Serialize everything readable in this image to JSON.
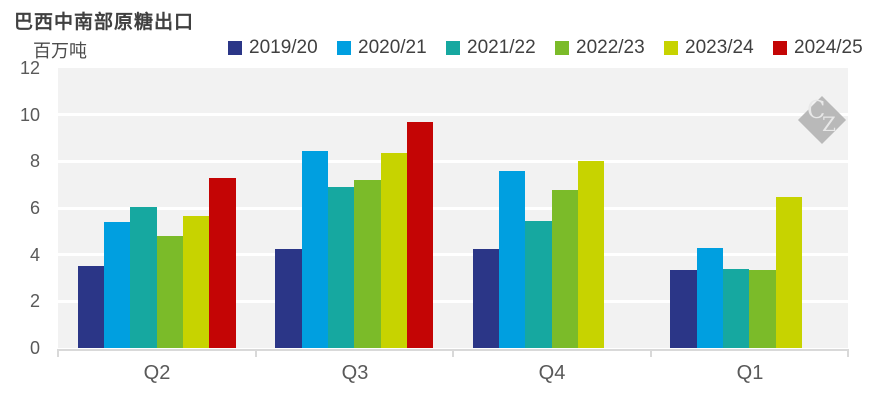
{
  "watermark": {
    "letter_c": "C",
    "letter_z": "Z"
  },
  "chart_data": {
    "type": "bar",
    "title": "巴西中南部原糖出口",
    "ylabel": "百万吨",
    "xlabel": "",
    "categories": [
      "Q2",
      "Q3",
      "Q4",
      "Q1"
    ],
    "series": [
      {
        "name": "2019/20",
        "color": "#2b3687",
        "values": [
          3.5,
          4.25,
          4.25,
          3.35
        ]
      },
      {
        "name": "2020/21",
        "color": "#009fe0",
        "values": [
          5.4,
          8.45,
          7.6,
          4.3
        ]
      },
      {
        "name": "2021/22",
        "color": "#16a8a0",
        "values": [
          6.05,
          6.9,
          5.45,
          3.4
        ]
      },
      {
        "name": "2022/23",
        "color": "#7bbb29",
        "values": [
          4.8,
          7.2,
          6.75,
          3.35
        ]
      },
      {
        "name": "2023/24",
        "color": "#c7d300",
        "values": [
          5.65,
          8.35,
          8.0,
          6.45
        ]
      },
      {
        "name": "2024/25",
        "color": "#c40505",
        "values": [
          7.3,
          9.7,
          null,
          null
        ]
      }
    ],
    "ylim": [
      0,
      12
    ],
    "yticks": [
      0,
      2,
      4,
      6,
      8,
      10,
      12
    ],
    "grid": true,
    "legend_position": "top",
    "style": {
      "plot_bg": "#f2f2f2",
      "grid_color": "#ffffff",
      "axis_color": "#d9d9d9",
      "tick_label_color": "#595959",
      "title_color": "#404040",
      "legend_text_color": "#404040",
      "watermark_diamond": "#b9b9b9",
      "watermark_letters": "#e8e8e8"
    }
  }
}
